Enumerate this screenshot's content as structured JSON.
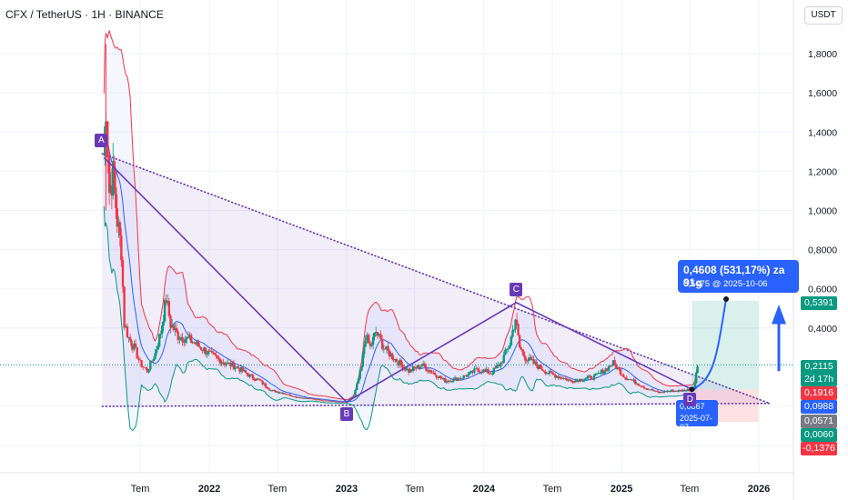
{
  "header": {
    "symbol_line": "CFX / TetherUS · 1H · BINANCE"
  },
  "currency": "USDT",
  "price_axis": {
    "ticks": [
      "1,8000",
      "1,6000",
      "1,4000",
      "1,2000",
      "1,0000",
      "0,8000",
      "0,6000",
      "0,4000"
    ]
  },
  "time_axis": {
    "labels": [
      {
        "text": "Tem",
        "date": "2021-07-01",
        "bold": false
      },
      {
        "text": "2022",
        "date": "2022-01-01",
        "bold": true
      },
      {
        "text": "Tem",
        "date": "2022-07-01",
        "bold": false
      },
      {
        "text": "2023",
        "date": "2023-01-01",
        "bold": true
      },
      {
        "text": "Tem",
        "date": "2023-07-01",
        "bold": false
      },
      {
        "text": "2024",
        "date": "2024-01-01",
        "bold": true
      },
      {
        "text": "Tem",
        "date": "2024-07-01",
        "bold": false
      },
      {
        "text": "2025",
        "date": "2025-01-01",
        "bold": true
      },
      {
        "text": "Tem",
        "date": "2025-07-01",
        "bold": false
      },
      {
        "text": "2026",
        "date": "2026-01-01",
        "bold": true
      }
    ]
  },
  "price_badges": [
    {
      "value": "0,5391",
      "color": "#089981"
    },
    {
      "value": "0,2115",
      "sub": "2d 17h",
      "color": "#089981"
    },
    {
      "value": "0,1916",
      "color": "#f23645"
    },
    {
      "value": "0,0988",
      "color": "#2962ff"
    },
    {
      "value": "0,0571",
      "color": "#787b86"
    },
    {
      "value": "0,0060",
      "color": "#089981"
    },
    {
      "value": "-0,1376",
      "color": "#f23645"
    }
  ],
  "projection": {
    "title": "0,4608 (531,17%) za 91g",
    "subtitle": "0,5475 @ 2025-10-06",
    "point_label_a": "0,0867",
    "point_label_b": "2025-07-07"
  },
  "pattern_points": [
    "A",
    "B",
    "C",
    "D"
  ],
  "colors": {
    "up": "#089981",
    "down": "#f23645",
    "pattern": "#673ab7",
    "projection": "#2962ff",
    "bb_upper": "#f23645",
    "bb_mid": "#2962ff",
    "bb_lower": "#089981"
  },
  "chart_data": {
    "type": "line",
    "title": "CFX / TetherUS · 1H · BINANCE",
    "xlabel": "",
    "ylabel": "",
    "ylim": [
      -0.18,
      1.95
    ],
    "series": [
      {
        "values": [
          [
            "2021-03-27",
            1.28
          ],
          [
            "2021-04-01",
            1.55
          ],
          [
            "2021-04-10",
            1.1
          ],
          [
            "2021-04-20",
            1.18
          ],
          [
            "2021-05-01",
            0.95
          ],
          [
            "2021-05-12",
            0.8
          ],
          [
            "2021-05-20",
            0.42
          ],
          [
            "2021-06-01",
            0.35
          ],
          [
            "2021-06-15",
            0.3
          ],
          [
            "2021-07-01",
            0.22
          ],
          [
            "2021-07-20",
            0.18
          ],
          [
            "2021-08-10",
            0.27
          ],
          [
            "2021-08-25",
            0.38
          ],
          [
            "2021-09-08",
            0.55
          ],
          [
            "2021-09-20",
            0.42
          ],
          [
            "2021-10-10",
            0.36
          ],
          [
            "2021-11-10",
            0.34
          ],
          [
            "2021-12-10",
            0.3
          ],
          [
            "2022-01-15",
            0.25
          ],
          [
            "2022-02-15",
            0.22
          ],
          [
            "2022-03-15",
            0.2
          ],
          [
            "2022-04-15",
            0.16
          ],
          [
            "2022-05-15",
            0.13
          ],
          [
            "2022-06-15",
            0.08
          ],
          [
            "2022-07-15",
            0.07
          ],
          [
            "2022-08-15",
            0.05
          ],
          [
            "2022-09-15",
            0.04
          ],
          [
            "2022-10-15",
            0.035
          ],
          [
            "2022-11-15",
            0.028
          ],
          [
            "2022-12-15",
            0.022
          ],
          [
            "2023-01-01",
            0.022
          ],
          [
            "2023-01-20",
            0.05
          ],
          [
            "2023-02-10",
            0.2
          ],
          [
            "2023-02-20",
            0.36
          ],
          [
            "2023-03-05",
            0.3
          ],
          [
            "2023-03-20",
            0.38
          ],
          [
            "2023-04-10",
            0.3
          ],
          [
            "2023-05-10",
            0.24
          ],
          [
            "2023-06-15",
            0.18
          ],
          [
            "2023-07-20",
            0.21
          ],
          [
            "2023-08-20",
            0.17
          ],
          [
            "2023-09-20",
            0.13
          ],
          [
            "2023-10-20",
            0.14
          ],
          [
            "2023-11-20",
            0.16
          ],
          [
            "2023-12-15",
            0.19
          ],
          [
            "2024-01-20",
            0.17
          ],
          [
            "2024-02-15",
            0.22
          ],
          [
            "2024-03-10",
            0.32
          ],
          [
            "2024-03-25",
            0.45
          ],
          [
            "2024-04-05",
            0.3
          ],
          [
            "2024-04-20",
            0.25
          ],
          [
            "2024-05-20",
            0.21
          ],
          [
            "2024-06-20",
            0.17
          ],
          [
            "2024-07-20",
            0.15
          ],
          [
            "2024-08-20",
            0.13
          ],
          [
            "2024-09-20",
            0.14
          ],
          [
            "2024-10-20",
            0.15
          ],
          [
            "2024-11-20",
            0.19
          ],
          [
            "2024-12-10",
            0.22
          ],
          [
            "2025-01-10",
            0.15
          ],
          [
            "2025-02-10",
            0.12
          ],
          [
            "2025-03-10",
            0.09
          ],
          [
            "2025-04-10",
            0.07
          ],
          [
            "2025-05-10",
            0.08
          ],
          [
            "2025-06-10",
            0.08
          ],
          [
            "2025-07-07",
            0.0867
          ],
          [
            "2025-07-15",
            0.12
          ],
          [
            "2025-07-22",
            0.21
          ]
        ]
      }
    ],
    "pattern": [
      {
        "label": "A",
        "date": "2021-03-27",
        "price": 1.27
      },
      {
        "label": "B",
        "date": "2023-01-01",
        "price": 0.022
      },
      {
        "label": "C",
        "date": "2024-03-27",
        "price": 0.53
      },
      {
        "label": "D",
        "date": "2025-07-07",
        "price": 0.0867
      }
    ],
    "target": {
      "date": "2025-10-06",
      "price": 0.5475
    }
  }
}
